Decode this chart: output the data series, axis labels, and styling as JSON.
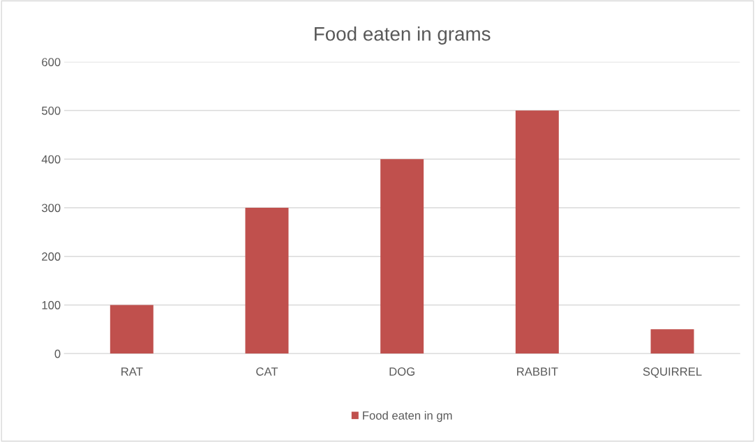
{
  "chart_data": {
    "type": "bar",
    "title": "Food eaten in grams",
    "categories": [
      "RAT",
      "CAT",
      "DOG",
      "RABBIT",
      "SQUIRREL"
    ],
    "series": [
      {
        "name": "Food eaten in gm",
        "color": "#c0504d",
        "values": [
          100,
          300,
          400,
          500,
          50
        ]
      }
    ],
    "ylim": [
      0,
      600
    ],
    "yticks": [
      0,
      100,
      200,
      300,
      400,
      500,
      600
    ],
    "grid": "y",
    "legend": "bottom"
  }
}
